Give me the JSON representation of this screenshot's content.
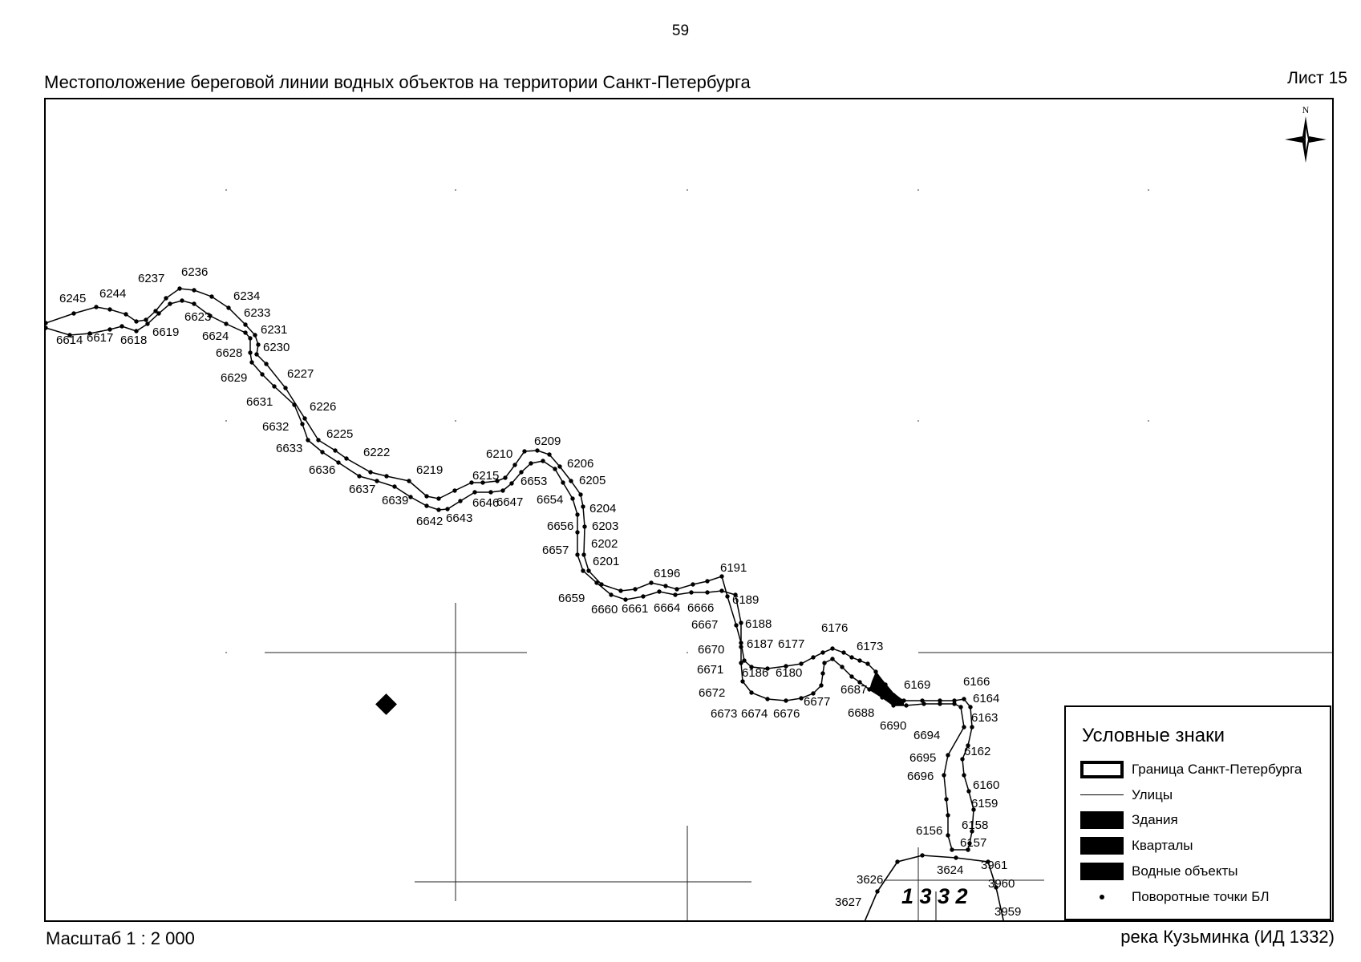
{
  "header": {
    "page_number": "59",
    "title": "Местоположение береговой линии водных объектов на территории Санкт-Петербурга",
    "sheet": "Лист 15"
  },
  "footer": {
    "scale": "Масштаб 1 : 2 000",
    "object_name": "река Кузьминка (ИД 1332)"
  },
  "north_arrow": {
    "label": "N",
    "icon": "compass-rose-icon"
  },
  "legend": {
    "title": "Условные знаки",
    "items": [
      {
        "label": "Граница Санкт-Петербурга",
        "symbol": "thick-outline"
      },
      {
        "label": "Улицы",
        "symbol": "thin-line"
      },
      {
        "label": "Здания",
        "symbol": "black-fill"
      },
      {
        "label": "Кварталы",
        "symbol": "black-fill"
      },
      {
        "label": "Водные объекты",
        "symbol": "black-fill"
      },
      {
        "label": "Поворотные точки БЛ",
        "symbol": "dot"
      }
    ]
  },
  "plot_number": "1 3 3 2",
  "point_labels": [
    "6245",
    "6244",
    "6237",
    "6236",
    "6234",
    "6233",
    "6231",
    "6230",
    "6227",
    "6226",
    "6225",
    "6222",
    "6219",
    "6215",
    "6210",
    "6209",
    "6206",
    "6205",
    "6204",
    "6203",
    "6202",
    "6201",
    "6196",
    "6191",
    "6189",
    "6188",
    "6187",
    "6177",
    "6176",
    "6173",
    "6186",
    "6180",
    "6169",
    "6166",
    "6164",
    "6163",
    "6162",
    "6160",
    "6159",
    "6158",
    "6157",
    "6156",
    "6614",
    "6617",
    "6618",
    "6619",
    "6623",
    "6624",
    "6628",
    "6629",
    "6631",
    "6632",
    "6633",
    "6636",
    "6637",
    "6639",
    "6642",
    "6643",
    "6646",
    "6647",
    "6653",
    "6654",
    "6656",
    "6657",
    "6659",
    "6660",
    "6661",
    "6664",
    "6666",
    "6667",
    "6670",
    "6671",
    "6672",
    "6673",
    "6674",
    "6676",
    "6677",
    "6687",
    "6688",
    "6690",
    "6694",
    "6695",
    "6696",
    "3626",
    "3627",
    "3624",
    "3961",
    "3960",
    "3959"
  ]
}
